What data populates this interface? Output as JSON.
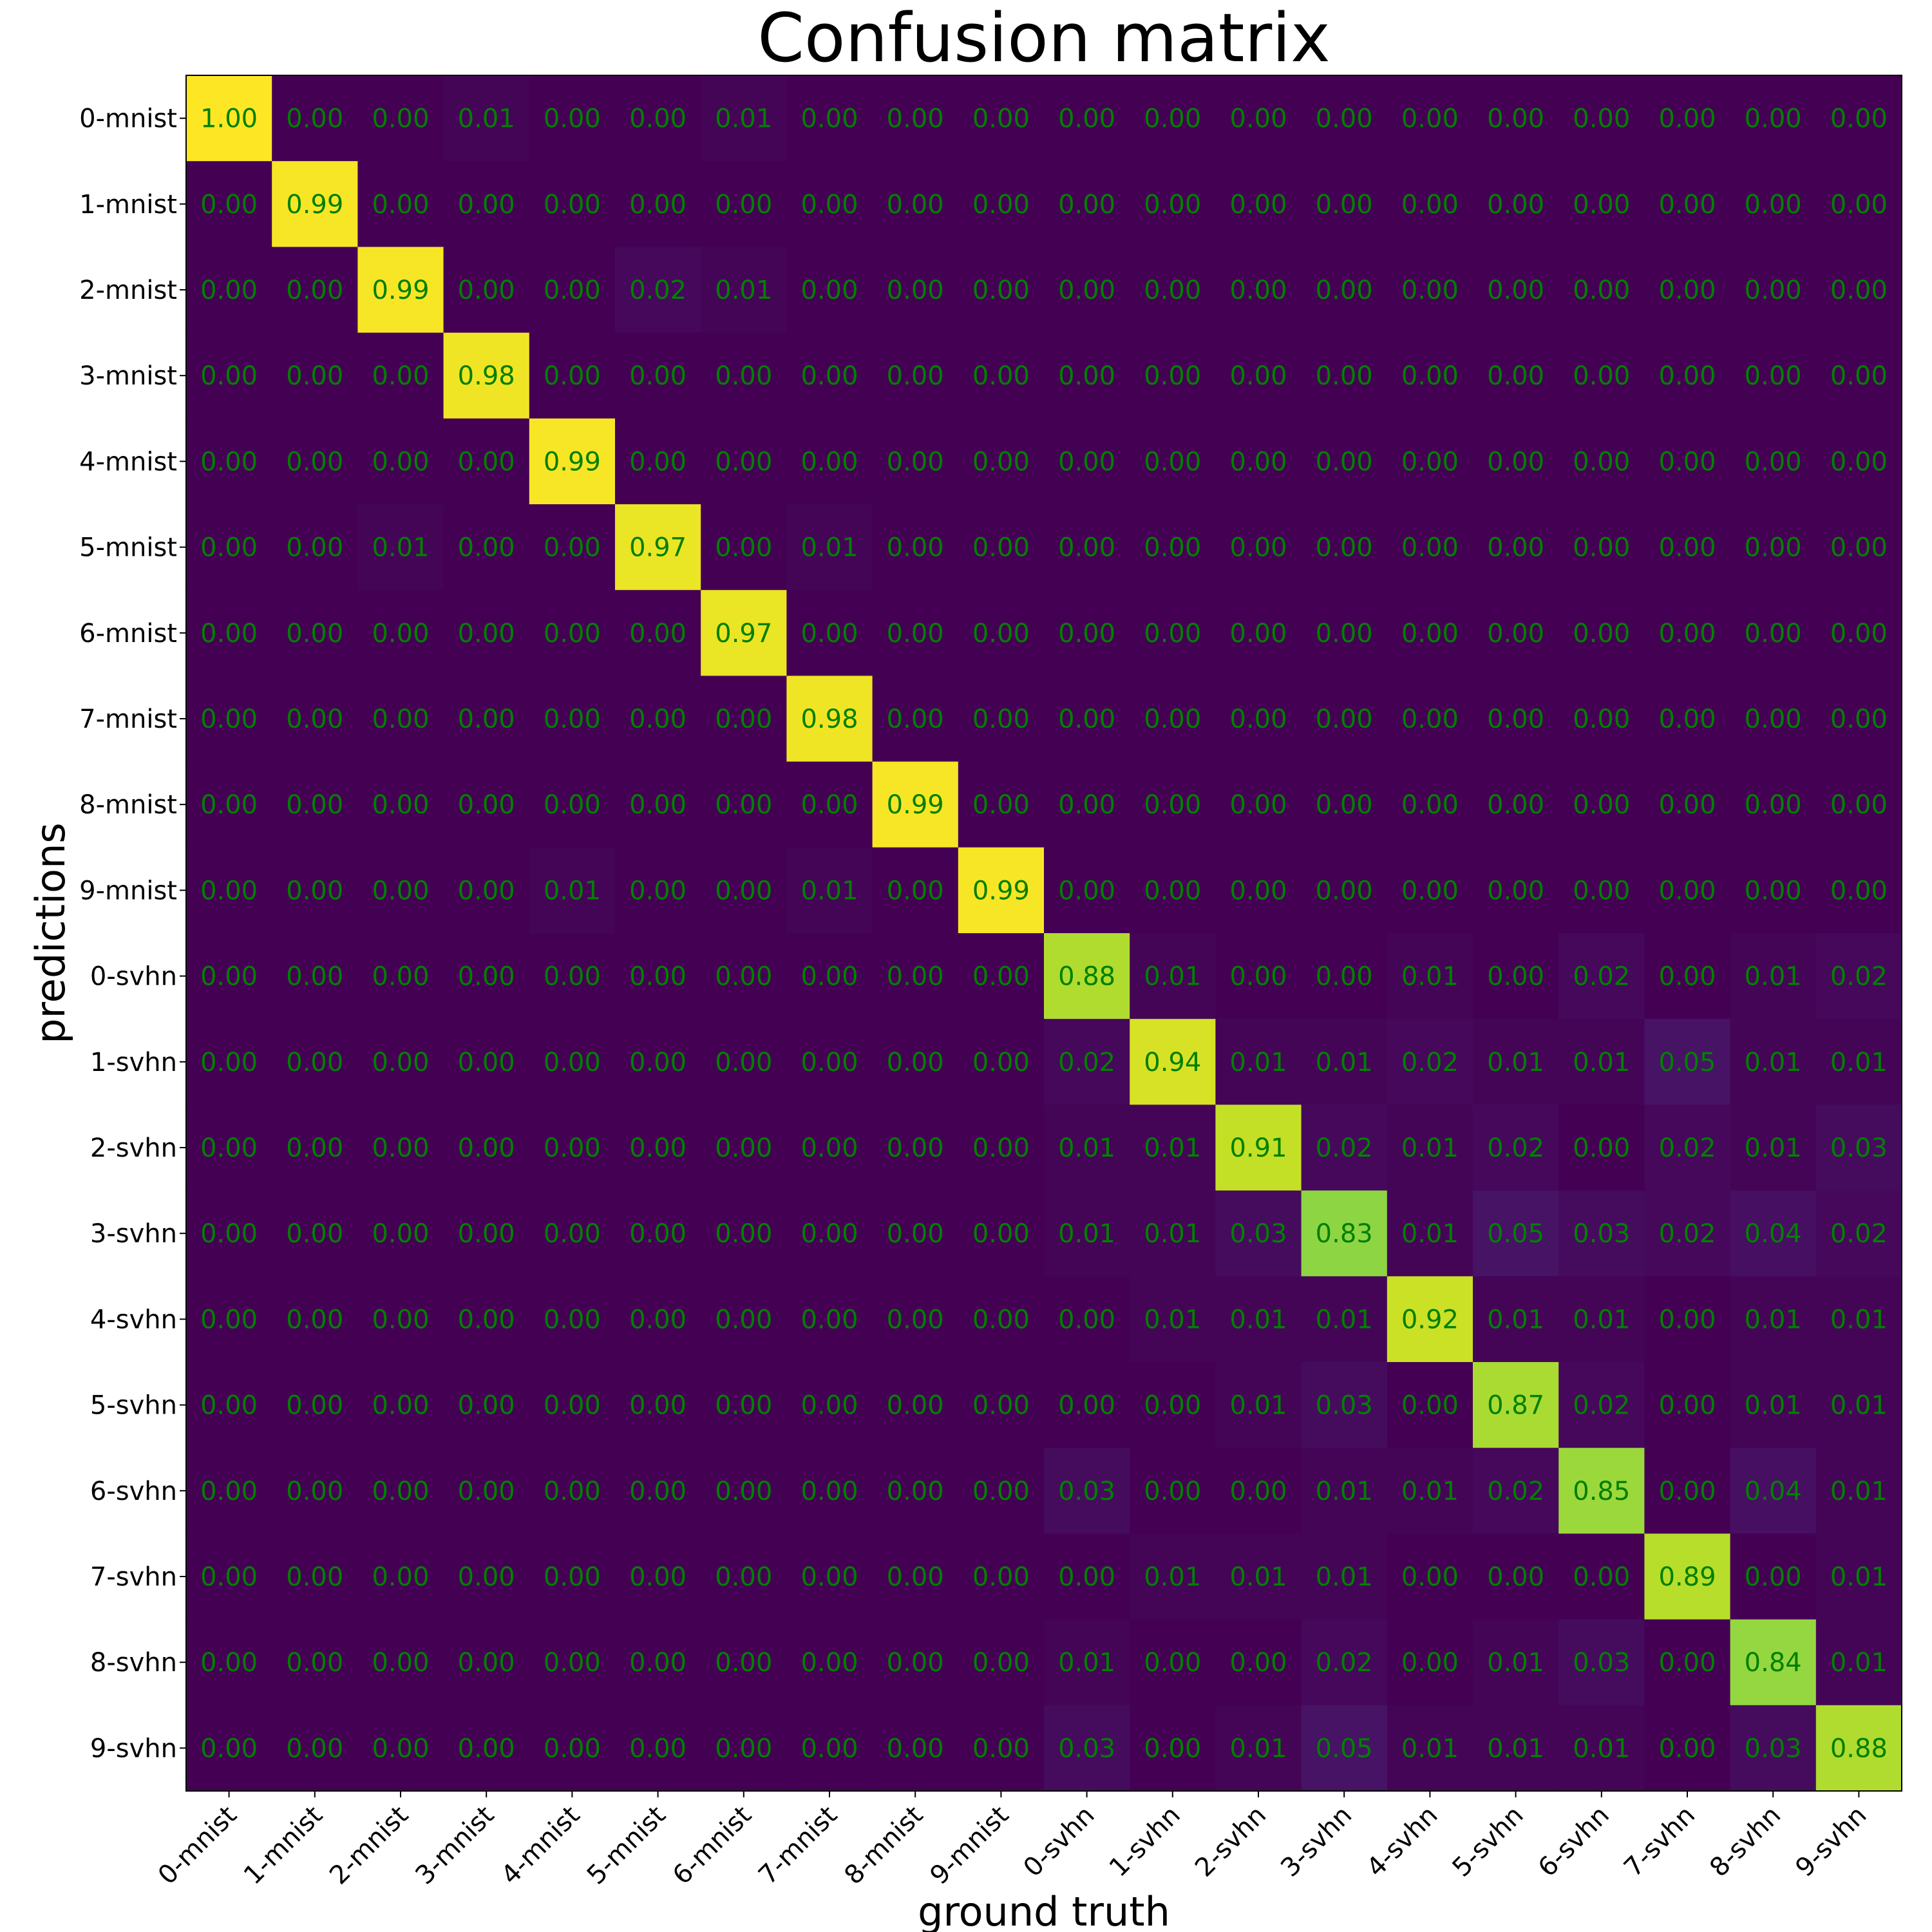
{
  "chart_data": {
    "type": "heatmap",
    "title": "Confusion matrix",
    "xlabel": "ground truth",
    "ylabel": "predictions",
    "categories": [
      "0-mnist",
      "1-mnist",
      "2-mnist",
      "3-mnist",
      "4-mnist",
      "5-mnist",
      "6-mnist",
      "7-mnist",
      "8-mnist",
      "9-mnist",
      "0-svhn",
      "1-svhn",
      "2-svhn",
      "3-svhn",
      "4-svhn",
      "5-svhn",
      "6-svhn",
      "7-svhn",
      "8-svhn",
      "9-svhn"
    ],
    "colormap": "viridis",
    "value_range": [
      0,
      1
    ],
    "cell_text_color": "#008000",
    "grid": false,
    "values": [
      [
        1.0,
        0.0,
        0.0,
        0.01,
        0.0,
        0.0,
        0.01,
        0.0,
        0.0,
        0.0,
        0.0,
        0.0,
        0.0,
        0.0,
        0.0,
        0.0,
        0.0,
        0.0,
        0.0,
        0.0
      ],
      [
        0.0,
        0.99,
        0.0,
        0.0,
        0.0,
        0.0,
        0.0,
        0.0,
        0.0,
        0.0,
        0.0,
        0.0,
        0.0,
        0.0,
        0.0,
        0.0,
        0.0,
        0.0,
        0.0,
        0.0
      ],
      [
        0.0,
        0.0,
        0.99,
        0.0,
        0.0,
        0.02,
        0.01,
        0.0,
        0.0,
        0.0,
        0.0,
        0.0,
        0.0,
        0.0,
        0.0,
        0.0,
        0.0,
        0.0,
        0.0,
        0.0
      ],
      [
        0.0,
        0.0,
        0.0,
        0.98,
        0.0,
        0.0,
        0.0,
        0.0,
        0.0,
        0.0,
        0.0,
        0.0,
        0.0,
        0.0,
        0.0,
        0.0,
        0.0,
        0.0,
        0.0,
        0.0
      ],
      [
        0.0,
        0.0,
        0.0,
        0.0,
        0.99,
        0.0,
        0.0,
        0.0,
        0.0,
        0.0,
        0.0,
        0.0,
        0.0,
        0.0,
        0.0,
        0.0,
        0.0,
        0.0,
        0.0,
        0.0
      ],
      [
        0.0,
        0.0,
        0.01,
        0.0,
        0.0,
        0.97,
        0.0,
        0.01,
        0.0,
        0.0,
        0.0,
        0.0,
        0.0,
        0.0,
        0.0,
        0.0,
        0.0,
        0.0,
        0.0,
        0.0
      ],
      [
        0.0,
        0.0,
        0.0,
        0.0,
        0.0,
        0.0,
        0.97,
        0.0,
        0.0,
        0.0,
        0.0,
        0.0,
        0.0,
        0.0,
        0.0,
        0.0,
        0.0,
        0.0,
        0.0,
        0.0
      ],
      [
        0.0,
        0.0,
        0.0,
        0.0,
        0.0,
        0.0,
        0.0,
        0.98,
        0.0,
        0.0,
        0.0,
        0.0,
        0.0,
        0.0,
        0.0,
        0.0,
        0.0,
        0.0,
        0.0,
        0.0
      ],
      [
        0.0,
        0.0,
        0.0,
        0.0,
        0.0,
        0.0,
        0.0,
        0.0,
        0.99,
        0.0,
        0.0,
        0.0,
        0.0,
        0.0,
        0.0,
        0.0,
        0.0,
        0.0,
        0.0,
        0.0
      ],
      [
        0.0,
        0.0,
        0.0,
        0.0,
        0.01,
        0.0,
        0.0,
        0.01,
        0.0,
        0.99,
        0.0,
        0.0,
        0.0,
        0.0,
        0.0,
        0.0,
        0.0,
        0.0,
        0.0,
        0.0
      ],
      [
        0.0,
        0.0,
        0.0,
        0.0,
        0.0,
        0.0,
        0.0,
        0.0,
        0.0,
        0.0,
        0.88,
        0.01,
        0.0,
        0.0,
        0.01,
        0.0,
        0.02,
        0.0,
        0.01,
        0.02
      ],
      [
        0.0,
        0.0,
        0.0,
        0.0,
        0.0,
        0.0,
        0.0,
        0.0,
        0.0,
        0.0,
        0.02,
        0.94,
        0.01,
        0.01,
        0.02,
        0.01,
        0.01,
        0.05,
        0.01,
        0.01
      ],
      [
        0.0,
        0.0,
        0.0,
        0.0,
        0.0,
        0.0,
        0.0,
        0.0,
        0.0,
        0.0,
        0.01,
        0.01,
        0.91,
        0.02,
        0.01,
        0.02,
        0.0,
        0.02,
        0.01,
        0.03
      ],
      [
        0.0,
        0.0,
        0.0,
        0.0,
        0.0,
        0.0,
        0.0,
        0.0,
        0.0,
        0.0,
        0.01,
        0.01,
        0.03,
        0.83,
        0.01,
        0.05,
        0.03,
        0.02,
        0.04,
        0.02
      ],
      [
        0.0,
        0.0,
        0.0,
        0.0,
        0.0,
        0.0,
        0.0,
        0.0,
        0.0,
        0.0,
        0.0,
        0.01,
        0.01,
        0.01,
        0.92,
        0.01,
        0.01,
        0.0,
        0.01,
        0.01
      ],
      [
        0.0,
        0.0,
        0.0,
        0.0,
        0.0,
        0.0,
        0.0,
        0.0,
        0.0,
        0.0,
        0.0,
        0.0,
        0.01,
        0.03,
        0.0,
        0.87,
        0.02,
        0.0,
        0.01,
        0.01
      ],
      [
        0.0,
        0.0,
        0.0,
        0.0,
        0.0,
        0.0,
        0.0,
        0.0,
        0.0,
        0.0,
        0.03,
        0.0,
        0.0,
        0.01,
        0.01,
        0.02,
        0.85,
        0.0,
        0.04,
        0.01
      ],
      [
        0.0,
        0.0,
        0.0,
        0.0,
        0.0,
        0.0,
        0.0,
        0.0,
        0.0,
        0.0,
        0.0,
        0.01,
        0.01,
        0.01,
        0.0,
        0.0,
        0.0,
        0.89,
        0.0,
        0.01
      ],
      [
        0.0,
        0.0,
        0.0,
        0.0,
        0.0,
        0.0,
        0.0,
        0.0,
        0.0,
        0.0,
        0.01,
        0.0,
        0.0,
        0.02,
        0.0,
        0.01,
        0.03,
        0.0,
        0.84,
        0.01
      ],
      [
        0.0,
        0.0,
        0.0,
        0.0,
        0.0,
        0.0,
        0.0,
        0.0,
        0.0,
        0.0,
        0.03,
        0.0,
        0.01,
        0.05,
        0.01,
        0.01,
        0.01,
        0.0,
        0.03,
        0.88
      ]
    ]
  }
}
